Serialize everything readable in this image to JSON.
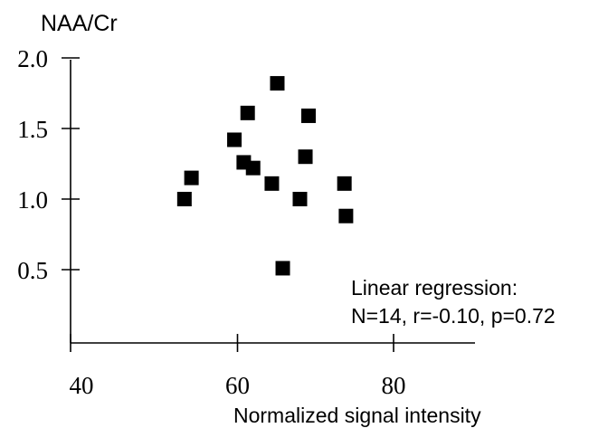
{
  "chart_data": {
    "type": "scatter",
    "title": "",
    "ylabel": "NAA/Cr",
    "xlabel": "Normalized signal intensity",
    "xlim": [
      40,
      90
    ],
    "ylim": [
      0.0,
      2.0
    ],
    "xticks": [
      40,
      60,
      80
    ],
    "xtick_labels": [
      "40",
      "60",
      "80"
    ],
    "yticks": [
      0.5,
      1.0,
      1.5,
      2.0
    ],
    "ytick_labels": [
      "0.5",
      "1.0",
      "1.5",
      "2.0"
    ],
    "grid": false,
    "legend": "none",
    "points": [
      {
        "x": 53.2,
        "y": 1.0
      },
      {
        "x": 54.1,
        "y": 1.15
      },
      {
        "x": 59.6,
        "y": 1.42
      },
      {
        "x": 60.8,
        "y": 1.26
      },
      {
        "x": 61.3,
        "y": 1.61
      },
      {
        "x": 62.0,
        "y": 1.22
      },
      {
        "x": 64.4,
        "y": 1.11
      },
      {
        "x": 65.1,
        "y": 1.82
      },
      {
        "x": 65.8,
        "y": 0.51
      },
      {
        "x": 68.0,
        "y": 1.0
      },
      {
        "x": 68.7,
        "y": 1.3
      },
      {
        "x": 69.1,
        "y": 1.59
      },
      {
        "x": 73.7,
        "y": 1.11
      },
      {
        "x": 73.9,
        "y": 0.88
      }
    ],
    "annotation": {
      "line1": "Linear regression:",
      "line2": "N=14, r=-0.10, p=0.72"
    },
    "marker": {
      "shape": "square",
      "color": "#000000"
    }
  }
}
